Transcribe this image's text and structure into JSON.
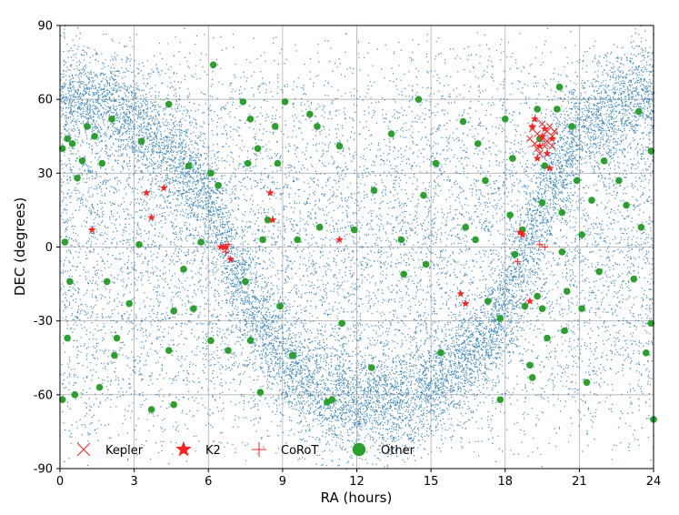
{
  "chart_data": {
    "type": "scatter",
    "xlabel": "RA (hours)",
    "ylabel": "DEC (degrees)",
    "xlim": [
      0,
      24
    ],
    "ylim": [
      -90,
      90
    ],
    "xticks": [
      "0",
      "3",
      "6",
      "9",
      "12",
      "15",
      "18",
      "21",
      "24"
    ],
    "yticks": [
      "90",
      "60",
      "30",
      "0",
      "-30",
      "-60",
      "-90"
    ],
    "grid": true,
    "legend_position": "bottom-left",
    "background_stars": {
      "color": "#1f77b4",
      "description_of_distribution": "dense field concentrated along the galactic plane plus uniform background",
      "count": 18000
    },
    "series": [
      {
        "name": "Kepler",
        "marker": "x",
        "color": "#ff2020",
        "points": [
          [
            19.1,
            48
          ],
          [
            19.3,
            46
          ],
          [
            19.5,
            44
          ],
          [
            19.7,
            47
          ],
          [
            19.9,
            45
          ],
          [
            19.2,
            42
          ],
          [
            19.6,
            41
          ],
          [
            19.8,
            49
          ],
          [
            19.4,
            38
          ],
          [
            19.0,
            44
          ],
          [
            19.5,
            50
          ],
          [
            20.0,
            47
          ],
          [
            19.3,
            40
          ],
          [
            19.7,
            43
          ],
          [
            19.9,
            41
          ]
        ]
      },
      {
        "name": "K2",
        "marker": "star",
        "color": "#ff2020",
        "points": [
          [
            1.3,
            7
          ],
          [
            3.5,
            22
          ],
          [
            3.7,
            12
          ],
          [
            4.2,
            24
          ],
          [
            6.5,
            0
          ],
          [
            6.7,
            0
          ],
          [
            6.9,
            -5
          ],
          [
            8.5,
            22
          ],
          [
            8.6,
            11
          ],
          [
            11.3,
            3
          ],
          [
            16.2,
            -19
          ],
          [
            16.4,
            -23
          ],
          [
            18.6,
            6
          ],
          [
            18.7,
            5
          ],
          [
            19.0,
            -22
          ],
          [
            19.2,
            52
          ],
          [
            19.3,
            36
          ],
          [
            19.5,
            45
          ],
          [
            19.7,
            38
          ],
          [
            19.6,
            48
          ],
          [
            19.9,
            44
          ],
          [
            19.4,
            41
          ],
          [
            19.8,
            32
          ],
          [
            19.1,
            49
          ]
        ]
      },
      {
        "name": "CoRoT",
        "marker": "plus",
        "color": "#ff2020",
        "points": [
          [
            6.6,
            0
          ],
          [
            6.8,
            1
          ],
          [
            6.7,
            -2
          ],
          [
            18.5,
            -6
          ],
          [
            19.4,
            1
          ],
          [
            19.6,
            0
          ]
        ]
      },
      {
        "name": "Other",
        "marker": "circle",
        "color": "#2ca02c",
        "points": [
          [
            0.1,
            40
          ],
          [
            0.3,
            44
          ],
          [
            0.5,
            42
          ],
          [
            0.7,
            28
          ],
          [
            0.9,
            35
          ],
          [
            1.1,
            49
          ],
          [
            1.4,
            45
          ],
          [
            0.2,
            2
          ],
          [
            0.4,
            -14
          ],
          [
            0.3,
            -37
          ],
          [
            0.6,
            -60
          ],
          [
            0.1,
            -62
          ],
          [
            1.7,
            34
          ],
          [
            2.1,
            52
          ],
          [
            1.9,
            -14
          ],
          [
            2.3,
            -37
          ],
          [
            2.2,
            -44
          ],
          [
            1.6,
            -57
          ],
          [
            3.2,
            1
          ],
          [
            2.8,
            -23
          ],
          [
            3.3,
            43
          ],
          [
            3.7,
            -66
          ],
          [
            4.4,
            -42
          ],
          [
            4.4,
            58
          ],
          [
            4.6,
            -26
          ],
          [
            4.6,
            -64
          ],
          [
            5.2,
            33
          ],
          [
            5.0,
            -9
          ],
          [
            5.4,
            -25
          ],
          [
            6.2,
            74
          ],
          [
            6.1,
            30
          ],
          [
            6.4,
            25
          ],
          [
            5.7,
            2
          ],
          [
            6.1,
            -38
          ],
          [
            6.8,
            -42
          ],
          [
            7.4,
            59
          ],
          [
            7.7,
            52
          ],
          [
            7.6,
            34
          ],
          [
            7.5,
            -14
          ],
          [
            7.7,
            -38
          ],
          [
            8.0,
            40
          ],
          [
            8.2,
            3
          ],
          [
            8.4,
            11
          ],
          [
            8.1,
            -59
          ],
          [
            8.7,
            49
          ],
          [
            8.8,
            34
          ],
          [
            8.9,
            -24
          ],
          [
            9.1,
            59
          ],
          [
            9.6,
            3
          ],
          [
            9.4,
            -44
          ],
          [
            10.1,
            54
          ],
          [
            10.4,
            49
          ],
          [
            10.5,
            8
          ],
          [
            10.8,
            -63
          ],
          [
            11.0,
            -62
          ],
          [
            11.3,
            41
          ],
          [
            11.4,
            -31
          ],
          [
            11.9,
            7
          ],
          [
            12.7,
            23
          ],
          [
            12.6,
            -49
          ],
          [
            13.4,
            46
          ],
          [
            13.8,
            3
          ],
          [
            13.9,
            -11
          ],
          [
            14.5,
            60
          ],
          [
            14.7,
            21
          ],
          [
            14.8,
            -7
          ],
          [
            15.2,
            34
          ],
          [
            15.4,
            -43
          ],
          [
            16.3,
            51
          ],
          [
            16.9,
            42
          ],
          [
            16.4,
            8
          ],
          [
            16.8,
            3
          ],
          [
            17.2,
            27
          ],
          [
            17.3,
            -22
          ],
          [
            17.8,
            -29
          ],
          [
            17.8,
            -62
          ],
          [
            18.0,
            52
          ],
          [
            18.3,
            36
          ],
          [
            18.2,
            13
          ],
          [
            18.4,
            -3
          ],
          [
            18.7,
            7
          ],
          [
            18.8,
            -24
          ],
          [
            19.0,
            -48
          ],
          [
            19.1,
            -53
          ],
          [
            19.3,
            56
          ],
          [
            19.4,
            44
          ],
          [
            19.6,
            33
          ],
          [
            19.5,
            18
          ],
          [
            19.3,
            -20
          ],
          [
            19.5,
            -25
          ],
          [
            19.7,
            -37
          ],
          [
            20.1,
            56
          ],
          [
            20.2,
            65
          ],
          [
            20.3,
            14
          ],
          [
            20.3,
            -2
          ],
          [
            20.5,
            -18
          ],
          [
            20.4,
            -34
          ],
          [
            20.7,
            49
          ],
          [
            20.9,
            27
          ],
          [
            21.1,
            5
          ],
          [
            21.1,
            -25
          ],
          [
            21.3,
            -55
          ],
          [
            21.5,
            19
          ],
          [
            21.8,
            -10
          ],
          [
            22.0,
            35
          ],
          [
            22.6,
            27
          ],
          [
            22.9,
            17
          ],
          [
            23.2,
            -13
          ],
          [
            23.4,
            55
          ],
          [
            23.5,
            8
          ],
          [
            23.7,
            -43
          ],
          [
            23.9,
            39
          ],
          [
            23.9,
            -31
          ],
          [
            24.0,
            -70
          ]
        ]
      }
    ]
  }
}
